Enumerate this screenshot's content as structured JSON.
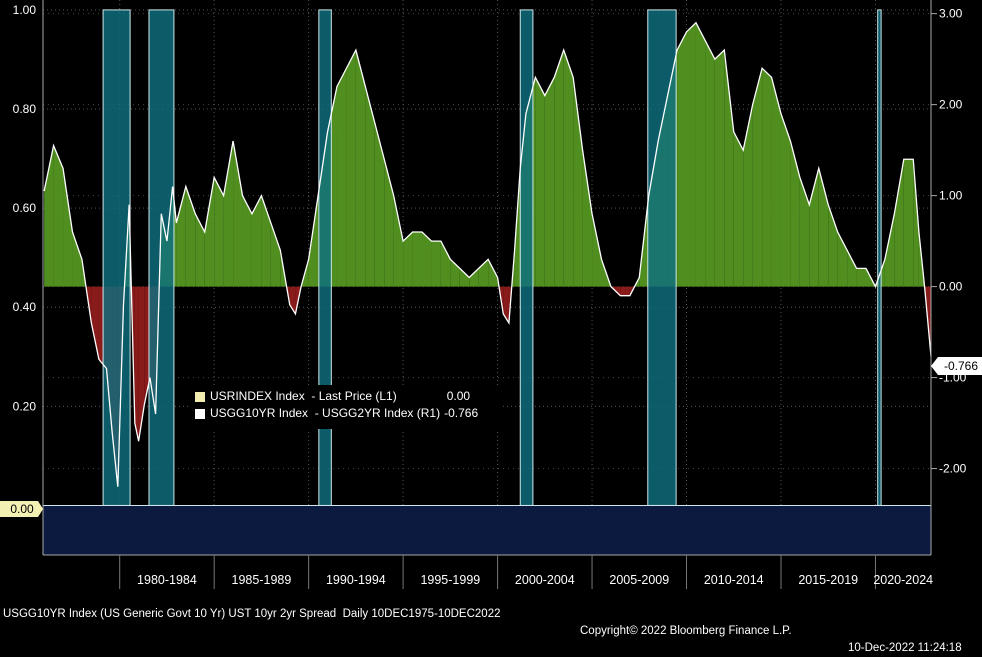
{
  "colors": {
    "recession_fill": "#0e6f80",
    "recession_line": "#cfe6ea",
    "positive_area": "#4f8e1f",
    "negative_area": "#8a1b1b",
    "spread_line": "#ffffff",
    "baseline_band": "#0c1a40",
    "zero_marker_bg": "#f3f0b4",
    "last_marker_bg": "#ffffff"
  },
  "legend": {
    "row1_label": "USRINDEX Index  - Last Price (L1)",
    "row1_value": "0.00",
    "row1_color": "#f3ecb0",
    "row2_label": "USGG10YR Index  - USGG2YR Index (R1)",
    "row2_value": "-0.766",
    "row2_color": "#ffffff"
  },
  "markers": {
    "left_marker": "0.00",
    "right_marker": "-0.766"
  },
  "footer": {
    "left": "USGG10YR Index (US Generic Govt 10 Yr) UST 10yr 2yr Spread  Daily 10DEC1975-10DEC2022",
    "copyright": "Copyright© 2022 Bloomberg Finance L.P.",
    "timestamp": "10-Dec-2022 11:24:18"
  },
  "chart_data": {
    "type": "area",
    "x_range": [
      1975.94,
      2022.94
    ],
    "left_axis": {
      "ticks": [
        "1.00",
        "0.80",
        "0.60",
        "0.40",
        "0.20"
      ],
      "tick_values": [
        1.0,
        0.8,
        0.6,
        0.4,
        0.2
      ],
      "range": [
        -0.1,
        1.02
      ]
    },
    "right_axis": {
      "ticks": [
        "3.00",
        "2.00",
        "1.00",
        "0.00",
        "-1.00",
        "-2.00"
      ],
      "tick_values": [
        3.0,
        2.0,
        1.0,
        0.0,
        -1.0,
        -2.0
      ],
      "range": [
        -2.95,
        3.15
      ]
    },
    "x_ticks": [
      "1980-1984",
      "1985-1989",
      "1990-1994",
      "1995-1999",
      "2000-2004",
      "2005-2009",
      "2010-2014",
      "2015-2019",
      "2020-2024"
    ],
    "x_tick_ranges": [
      [
        1980,
        1985
      ],
      [
        1985,
        1990
      ],
      [
        1990,
        1995
      ],
      [
        1995,
        2000
      ],
      [
        2000,
        2005
      ],
      [
        2005,
        2010
      ],
      [
        2010,
        2015
      ],
      [
        2015,
        2020
      ],
      [
        2020,
        2025
      ]
    ],
    "grid": true,
    "series": [
      {
        "name": "USRINDEX Index  - Last Price (L1)",
        "axis": "left",
        "kind": "recession_indicator",
        "periods": [
          [
            1979.12,
            1980.55
          ],
          [
            1981.55,
            1982.87
          ],
          [
            1990.54,
            1991.2
          ],
          [
            2001.2,
            2001.87
          ],
          [
            2007.95,
            2009.45
          ],
          [
            2020.12,
            2020.3
          ]
        ],
        "base_value": 0.0,
        "peak_value": 1.0
      },
      {
        "name": "USGG10YR Index  - USGG2YR Index (R1)",
        "axis": "right",
        "kind": "spread",
        "x": [
          1976.0,
          1976.5,
          1977.0,
          1977.5,
          1978.0,
          1978.5,
          1978.9,
          1979.3,
          1979.6,
          1979.9,
          1980.2,
          1980.5,
          1980.8,
          1981.0,
          1981.3,
          1981.6,
          1981.9,
          1982.2,
          1982.5,
          1982.8,
          1983.0,
          1983.5,
          1984.0,
          1984.5,
          1985.0,
          1985.5,
          1986.0,
          1986.5,
          1987.0,
          1987.5,
          1988.0,
          1988.5,
          1989.0,
          1989.3,
          1989.6,
          1990.0,
          1990.5,
          1991.0,
          1991.5,
          1992.0,
          1992.5,
          1993.0,
          1993.5,
          1994.0,
          1994.5,
          1995.0,
          1995.5,
          1996.0,
          1996.5,
          1997.0,
          1997.5,
          1998.0,
          1998.5,
          1999.0,
          1999.5,
          2000.0,
          2000.3,
          2000.6,
          2000.9,
          2001.2,
          2001.5,
          2002.0,
          2002.5,
          2003.0,
          2003.5,
          2004.0,
          2004.5,
          2005.0,
          2005.5,
          2006.0,
          2006.5,
          2007.0,
          2007.5,
          2008.0,
          2008.5,
          2009.0,
          2009.5,
          2010.0,
          2010.5,
          2011.0,
          2011.5,
          2012.0,
          2012.5,
          2013.0,
          2013.5,
          2014.0,
          2014.5,
          2015.0,
          2015.5,
          2016.0,
          2016.5,
          2017.0,
          2017.5,
          2018.0,
          2018.5,
          2019.0,
          2019.5,
          2020.0,
          2020.5,
          2021.0,
          2021.5,
          2022.0,
          2022.3,
          2022.6,
          2022.94
        ],
        "values": [
          1.05,
          1.55,
          1.3,
          0.6,
          0.3,
          -0.4,
          -0.8,
          -0.9,
          -1.6,
          -2.2,
          -0.2,
          0.9,
          -1.5,
          -1.7,
          -1.3,
          -1.0,
          -1.4,
          0.8,
          0.5,
          1.1,
          0.7,
          1.1,
          0.8,
          0.6,
          1.2,
          1.0,
          1.6,
          1.0,
          0.8,
          1.0,
          0.7,
          0.4,
          -0.2,
          -0.3,
          0.0,
          0.3,
          1.0,
          1.7,
          2.2,
          2.4,
          2.6,
          2.2,
          1.8,
          1.4,
          1.0,
          0.5,
          0.6,
          0.6,
          0.5,
          0.5,
          0.3,
          0.2,
          0.1,
          0.2,
          0.3,
          0.1,
          -0.3,
          -0.4,
          0.4,
          1.3,
          1.9,
          2.3,
          2.1,
          2.3,
          2.6,
          2.3,
          1.5,
          0.8,
          0.3,
          0.0,
          -0.1,
          -0.1,
          0.1,
          1.0,
          1.6,
          2.1,
          2.6,
          2.8,
          2.9,
          2.7,
          2.5,
          2.6,
          1.7,
          1.5,
          2.0,
          2.4,
          2.3,
          1.9,
          1.6,
          1.2,
          0.9,
          1.3,
          0.9,
          0.6,
          0.4,
          0.2,
          0.2,
          0.0,
          0.3,
          0.8,
          1.4,
          1.4,
          0.6,
          0.0,
          -0.766
        ]
      }
    ]
  }
}
